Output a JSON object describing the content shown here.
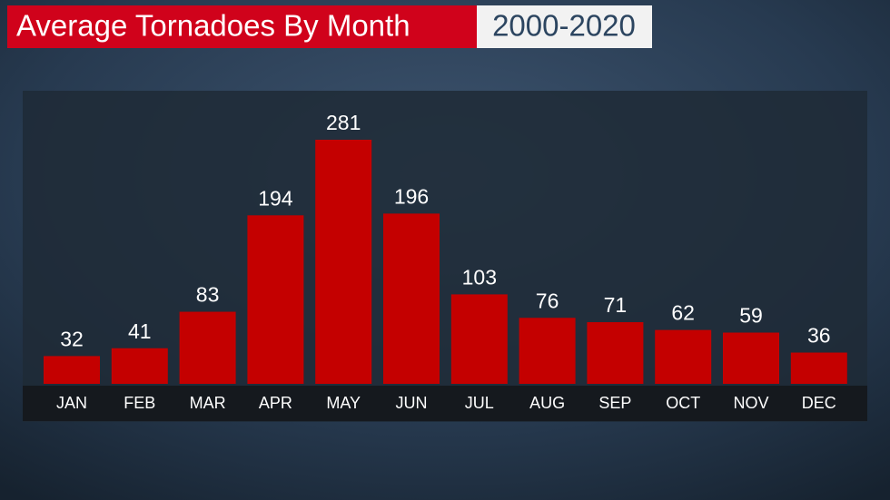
{
  "chart_data": {
    "type": "bar",
    "title": "Average Tornadoes By Month",
    "subtitle": "2000-2020",
    "categories": [
      "JAN",
      "FEB",
      "MAR",
      "APR",
      "MAY",
      "JUN",
      "JUL",
      "AUG",
      "SEP",
      "OCT",
      "NOV",
      "DEC"
    ],
    "values": [
      32,
      41,
      83,
      194,
      281,
      196,
      103,
      76,
      71,
      62,
      59,
      36
    ],
    "color": "#c40000"
  }
}
